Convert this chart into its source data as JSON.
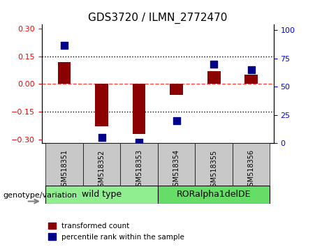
{
  "title": "GDS3720 / ILMN_2772470",
  "samples": [
    "GSM518351",
    "GSM518352",
    "GSM518353",
    "GSM518354",
    "GSM518355",
    "GSM518356"
  ],
  "transformed_count": [
    0.12,
    -0.23,
    -0.27,
    -0.06,
    0.07,
    0.05
  ],
  "percentile_rank": [
    87,
    5,
    1,
    20,
    70,
    65
  ],
  "groups": [
    {
      "label": "wild type",
      "indices": [
        0,
        1,
        2
      ],
      "color": "#90EE90"
    },
    {
      "label": "RORalpha1delDE",
      "indices": [
        3,
        4,
        5
      ],
      "color": "#66DD66"
    }
  ],
  "ylim_left": [
    -0.32,
    0.32
  ],
  "ylim_right": [
    0,
    105
  ],
  "yticks_left": [
    -0.3,
    -0.15,
    0,
    0.15,
    0.3
  ],
  "yticks_right": [
    0,
    25,
    50,
    75,
    100
  ],
  "bar_color": "#8B0000",
  "dot_color": "#00008B",
  "bar_width": 0.35,
  "background_color": "#ffffff",
  "plot_bg": "#ffffff",
  "legend_red_label": "transformed count",
  "legend_blue_label": "percentile rank within the sample",
  "genotype_label": "genotype/variation",
  "hline_color": "#FF4444",
  "grid_color": "#000000",
  "dot_size": 60
}
